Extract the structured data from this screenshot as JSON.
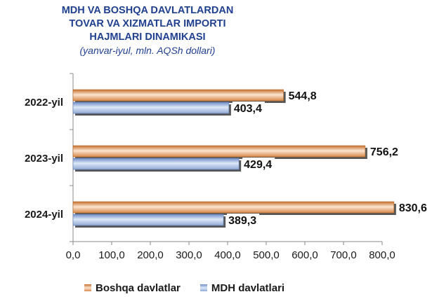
{
  "title": {
    "line1": "MDH VA BOSHQA DAVLATLARDAN",
    "line2": "TOVAR VA XIZMATLAR IMPORTI",
    "line3": "HAJMLARI DINAMIKASI",
    "subtitle": "(yanvar-iyul, mln. AQSh dollari)"
  },
  "legend": {
    "boshqa": "Boshqa davlatlar",
    "mdh": "MDH davlatlari"
  },
  "colors": {
    "boshqa_dark": "#c7702a",
    "boshqa_light": "#fbe3cf",
    "mdh_dark": "#6f8ec6",
    "mdh_light": "#dfe8f7"
  },
  "chart_data": {
    "type": "bar",
    "orientation": "horizontal",
    "categories": [
      "2022-yil",
      "2023-yil",
      "2024-yil"
    ],
    "series": [
      {
        "name": "Boshqa davlatlar",
        "values": [
          544.8,
          756.2,
          830.6
        ],
        "labels": [
          "544,8",
          "756,2",
          "830,6"
        ]
      },
      {
        "name": "MDH davlatlari",
        "values": [
          403.4,
          429.4,
          389.3
        ],
        "labels": [
          "403,4",
          "429,4",
          "389,3"
        ]
      }
    ],
    "xlim": [
      0,
      800
    ],
    "xticks": [
      "0,0",
      "100,0",
      "200,0",
      "300,0",
      "400,0",
      "500,0",
      "600,0",
      "700,0",
      "800,0"
    ],
    "grid": false,
    "legend_position": "bottom"
  }
}
